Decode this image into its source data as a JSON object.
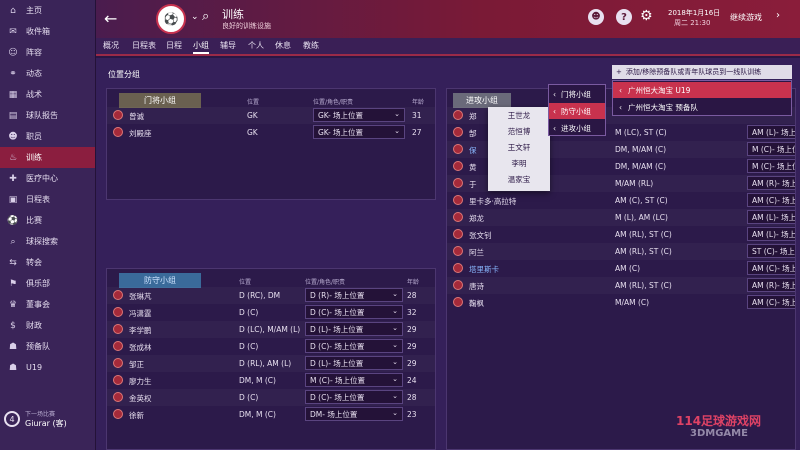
{
  "header": {
    "title": "训练",
    "subtitle": "良好的训练设施",
    "date": "2018年1月16日",
    "weekday_time": "周二 21:30",
    "continue_label": "继续游戏"
  },
  "sidebar": {
    "items": [
      {
        "label": "主页",
        "icon": "home-icon",
        "glyph": "⌂"
      },
      {
        "label": "收件箱",
        "icon": "inbox-icon",
        "glyph": "✉"
      },
      {
        "label": "阵容",
        "icon": "squad-icon",
        "glyph": "☺"
      },
      {
        "label": "动态",
        "icon": "dynamics-icon",
        "glyph": "⚭"
      },
      {
        "label": "战术",
        "icon": "tactics-icon",
        "glyph": "▦"
      },
      {
        "label": "球队报告",
        "icon": "report-icon",
        "glyph": "▤"
      },
      {
        "label": "职员",
        "icon": "staff-icon",
        "glyph": "☻"
      },
      {
        "label": "训练",
        "icon": "training-icon",
        "glyph": "♨"
      },
      {
        "label": "医疗中心",
        "icon": "medical-icon",
        "glyph": "✚"
      },
      {
        "label": "日程表",
        "icon": "calendar-icon",
        "glyph": "▣"
      },
      {
        "label": "比赛",
        "icon": "match-icon",
        "glyph": "⚽"
      },
      {
        "label": "球探搜索",
        "icon": "scouting-icon",
        "glyph": "⌕"
      },
      {
        "label": "转会",
        "icon": "transfer-icon",
        "glyph": "⇆"
      },
      {
        "label": "俱乐部",
        "icon": "club-icon",
        "glyph": "⚑"
      },
      {
        "label": "董事会",
        "icon": "board-icon",
        "glyph": "♛"
      },
      {
        "label": "财政",
        "icon": "finance-icon",
        "glyph": "$"
      },
      {
        "label": "预备队",
        "icon": "reserves-icon",
        "glyph": "☗"
      },
      {
        "label": "U19",
        "icon": "u19-icon",
        "glyph": "☗"
      }
    ],
    "active_index": 7,
    "next_match": {
      "number": "4",
      "label": "下一场比赛",
      "opponent": "Giurar (客)"
    }
  },
  "tabs": [
    "概况",
    "日程表",
    "日程",
    "小组",
    "辅导",
    "个人",
    "休息",
    "教练"
  ],
  "active_tab": 3,
  "section_title": "位置分组",
  "add_remove_label": "添加/移除预备队或青年队球员到一线队训练",
  "add_remove_menu": [
    "广州恒大淘宝 U19",
    "广州恒大淘宝 预备队"
  ],
  "columns": {
    "position": "位置",
    "role": "位置/角色/职责",
    "age": "年龄"
  },
  "gk": {
    "label": "门将小组",
    "players": [
      {
        "name": "曾诚",
        "pos": "GK",
        "role": "GK- 场上位置",
        "age": "31"
      },
      {
        "name": "刘殿座",
        "pos": "GK",
        "role": "GK- 场上位置",
        "age": "27"
      }
    ]
  },
  "def": {
    "label": "防守小组",
    "players": [
      {
        "name": "张琳芃",
        "pos": "D (RC), DM",
        "role": "D (R)- 场上位置",
        "age": "28"
      },
      {
        "name": "冯潇霆",
        "pos": "D (C)",
        "role": "D (C)- 场上位置",
        "age": "32"
      },
      {
        "name": "李学鹏",
        "pos": "D (LC), M/AM (L)",
        "role": "D (L)- 场上位置",
        "age": "29"
      },
      {
        "name": "张成林",
        "pos": "D (C)",
        "role": "D (C)- 场上位置",
        "age": "29"
      },
      {
        "name": "邹正",
        "pos": "D (RL), AM (L)",
        "role": "D (L)- 场上位置",
        "age": "29"
      },
      {
        "name": "廖力生",
        "pos": "DM, M (C)",
        "role": "M (C)- 场上位置",
        "age": "24"
      },
      {
        "name": "金英权",
        "pos": "D (C)",
        "role": "D (C)- 场上位置",
        "age": "28"
      },
      {
        "name": "徐新",
        "pos": "DM, M (C)",
        "role": "DM- 场上位置",
        "age": "23"
      }
    ]
  },
  "att": {
    "label": "进攻小组",
    "players": [
      {
        "name": "郑",
        "pos": "",
        "role": "",
        "age": ""
      },
      {
        "name": "郜",
        "pos": "M (LC), ST (C)",
        "role": "AM (L)- 场上位置",
        "age": "31"
      },
      {
        "name": "保",
        "pos": "DM, M/AM (C)",
        "role": "M (C)- 场上位置",
        "age": "29"
      },
      {
        "name": "黄",
        "pos": "DM, M/AM (C)",
        "role": "M (C)- 场上位置",
        "age": "30"
      },
      {
        "name": "于",
        "pos": "M/AM (RL)",
        "role": "AM (R)- 场上位置",
        "age": "28"
      },
      {
        "name": "里卡多·高拉特",
        "pos": "AM (C), ST (C)",
        "role": "AM (C)- 场上位置",
        "age": "26"
      },
      {
        "name": "郑龙",
        "pos": "M (L), AM (LC)",
        "role": "AM (L)- 场上位置",
        "age": "29"
      },
      {
        "name": "张文钊",
        "pos": "AM (RL), ST (C)",
        "role": "AM (L)- 场上位置",
        "age": "30"
      },
      {
        "name": "阿兰",
        "pos": "AM (RL), ST (C)",
        "role": "ST (C)- 场上位置",
        "age": "28"
      },
      {
        "name": "塔里斯卡",
        "pos": "AM (C)",
        "role": "AM (C)- 场上位置",
        "age": "23"
      },
      {
        "name": "唐诗",
        "pos": "AM (RL), ST (C)",
        "role": "AM (R)- 场上位置",
        "age": "22"
      },
      {
        "name": "鞠枫",
        "pos": "M/AM (C)",
        "role": "AM (C)- 场上位置",
        "age": "23"
      }
    ]
  },
  "player_popup": [
    "王世龙",
    "范恒博",
    "王文轩",
    "李明",
    "温家宝"
  ],
  "group_menu": [
    "门将小组",
    "防守小组",
    "进攻小组"
  ],
  "group_menu_active": 1,
  "watermark": "114足球游戏网",
  "colors": {
    "accent": "#8b1e3f",
    "highlight": "#c8324e",
    "background": "#35205a"
  }
}
